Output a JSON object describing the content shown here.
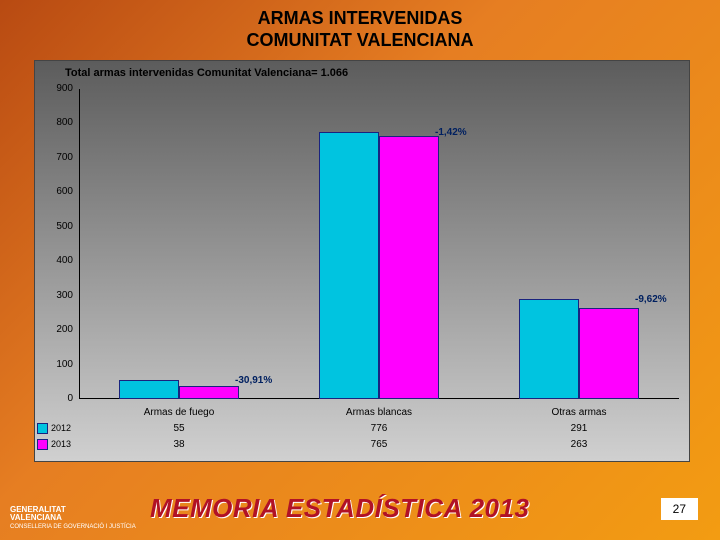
{
  "title_line1": "ARMAS INTERVENIDAS",
  "title_line2": "COMUNITAT VALENCIANA",
  "chart": {
    "type": "bar",
    "subtitle": "Total armas intervenidas Comunitat Valenciana=  1.066",
    "ylim_max": 900,
    "ytick_step": 100,
    "yticks": [
      "0",
      "100",
      "200",
      "300",
      "400",
      "500",
      "600",
      "700",
      "800",
      "900"
    ],
    "categories": [
      "Armas de fuego",
      "Armas blancas",
      "Otras armas"
    ],
    "series": [
      {
        "name": "2012",
        "color": "#00c4e0",
        "values": [
          55,
          776,
          291
        ]
      },
      {
        "name": "2013",
        "color": "#ff00ff",
        "values": [
          38,
          765,
          263
        ]
      }
    ],
    "pct_labels": [
      "-30,91%",
      "-1,42%",
      "-9,62%"
    ],
    "bar_border": "#1a237e",
    "background_gradient_top": "#5c5c5c",
    "background_gradient_bottom": "#d0d0d0"
  },
  "footer": {
    "logo_line1": "GENERALITAT",
    "logo_line2": "VALENCIANA",
    "logo_sub": "CONSELLERIA DE GOVERNACIÓ I JUSTÍCIA",
    "memo_text": "MEMORIA ESTADÍSTICA 2013",
    "page_number": "27"
  }
}
